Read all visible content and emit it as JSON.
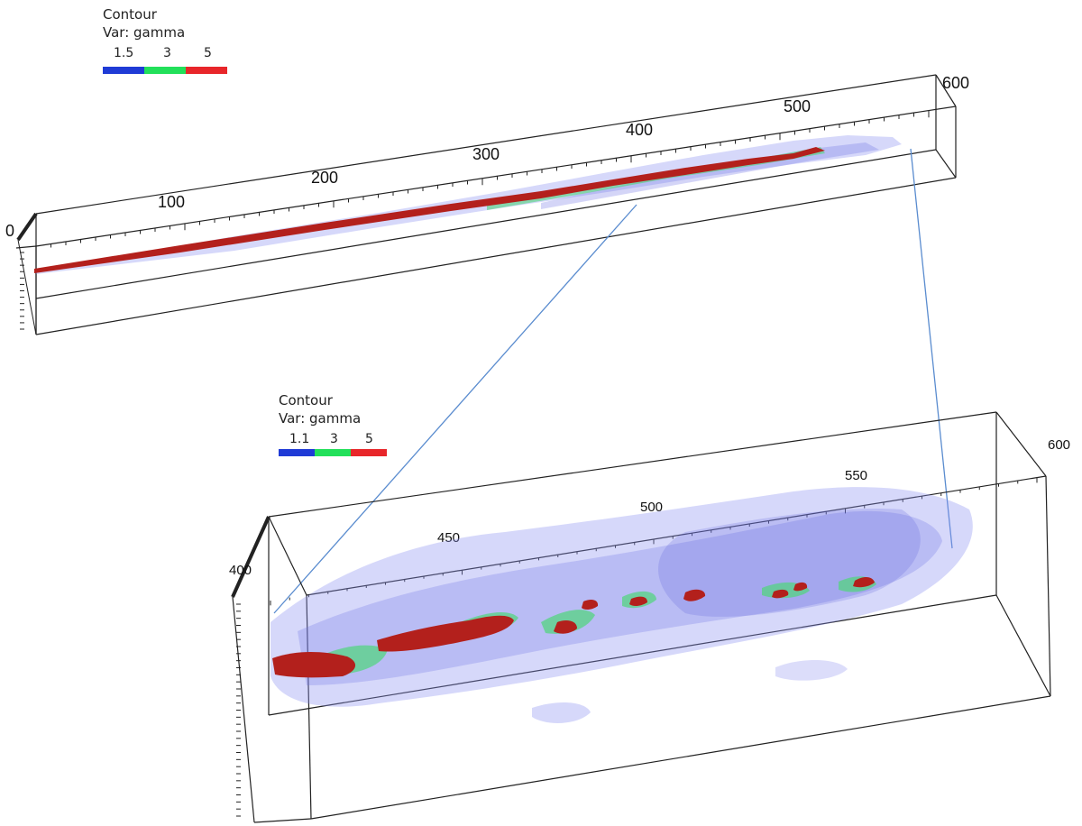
{
  "top_view": {
    "legend": {
      "title": "Contour",
      "var_label": "Var: gamma",
      "ticks": [
        "1.5",
        "3",
        "5"
      ],
      "colors": [
        "#1f3bd6",
        "#22e05a",
        "#e8262a"
      ]
    },
    "axis_labels": [
      "0",
      "100",
      "200",
      "300",
      "400",
      "500",
      "600"
    ]
  },
  "zoom_view": {
    "legend": {
      "title": "Contour",
      "var_label": "Var: gamma",
      "ticks": [
        "1.1",
        "3",
        "5"
      ],
      "colors": [
        "#1f3bd6",
        "#22e05a",
        "#e8262a"
      ]
    },
    "axis_labels": [
      "400",
      "450",
      "500",
      "550",
      "600"
    ]
  },
  "colors": {
    "box_line": "#222222",
    "zoom_connector": "#5a8ccf",
    "low_contour": "#6f74e6",
    "mid_contour": "#4fd67a",
    "high_contour": "#b3201c"
  }
}
